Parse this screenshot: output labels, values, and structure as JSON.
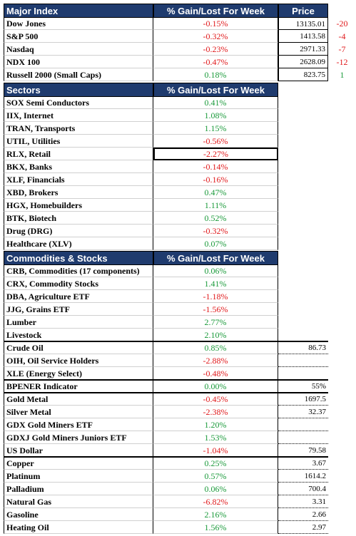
{
  "sections": [
    {
      "title": "Major Index",
      "column": "% Gain/Lost For Week",
      "price_header": "Price",
      "groups": [
        [
          {
            "name": "Dow Jones",
            "pct": "-0.15%",
            "price": "13135.01",
            "change": "-20"
          },
          {
            "name": "S&P 500",
            "pct": "-0.32%",
            "price": "1413.58",
            "change": "-4"
          },
          {
            "name": "Nasdaq",
            "pct": "-0.23%",
            "price": "2971.33",
            "change": "-7"
          },
          {
            "name": "NDX 100",
            "pct": "-0.47%",
            "price": "2628.09",
            "change": "-12"
          },
          {
            "name": "Russell 2000 (Small Caps)",
            "pct": "0.18%",
            "price": "823.75",
            "change": "1"
          }
        ]
      ]
    },
    {
      "title": "Sectors",
      "column": "% Gain/Lost For Week",
      "groups": [
        [
          {
            "name": "SOX Semi Conductors",
            "pct": "0.41%"
          },
          {
            "name": "IIX, Internet",
            "pct": "1.08%"
          },
          {
            "name": "TRAN, Transports",
            "pct": "1.15%"
          },
          {
            "name": "UTIL, Utilities",
            "pct": "-0.56%"
          },
          {
            "name": "RLX, Retail",
            "pct": "-2.27%"
          },
          {
            "name": "BKX, Banks",
            "pct": "-0.14%"
          },
          {
            "name": "XLF, Financials",
            "pct": "-0.16%"
          },
          {
            "name": "XBD, Brokers",
            "pct": "0.47%"
          },
          {
            "name": "HGX, Homebuilders",
            "pct": "1.11%"
          },
          {
            "name": "BTK, Biotech",
            "pct": "0.52%"
          },
          {
            "name": "Drug (DRG)",
            "pct": "-0.32%"
          },
          {
            "name": "Healthcare (XLV)",
            "pct": "0.07%"
          }
        ]
      ]
    },
    {
      "title": "Commodities & Stocks",
      "column": "% Gain/Lost For Week",
      "groups": [
        [
          {
            "name": "CRB, Commodities (17 components)",
            "pct": "0.06%"
          },
          {
            "name": "CRX, Commodity Stocks",
            "pct": "1.41%"
          },
          {
            "name": "DBA, Agriculture ETF",
            "pct": "-1.18%"
          },
          {
            "name": "JJG, Grains ETF",
            "pct": "-1.56%"
          },
          {
            "name": "Lumber",
            "pct": "2.77%"
          },
          {
            "name": "Livestock",
            "pct": "2.10%"
          }
        ],
        [
          {
            "name": "Crude Oil",
            "pct": "0.85%",
            "price": "86.73"
          },
          {
            "name": "OIH, Oil Service Holders",
            "pct": "-2.88%"
          },
          {
            "name": "XLE (Energy Select)",
            "pct": "-0.48%"
          }
        ],
        [
          {
            "name": "BPENER Indicator",
            "pct": "0.00%",
            "price": "55%"
          }
        ],
        [
          {
            "name": "Gold Metal",
            "pct": "-0.45%",
            "price": "1697.5"
          },
          {
            "name": "Silver Metal",
            "pct": "-2.38%",
            "price": "32.37"
          },
          {
            "name": "GDX Gold Miners ETF",
            "pct": "1.20%"
          },
          {
            "name": "GDXJ Gold Miners Juniors ETF",
            "pct": "1.53%"
          },
          {
            "name": "US Dollar",
            "pct": "-1.04%",
            "price": "79.58"
          }
        ],
        [
          {
            "name": "Copper",
            "pct": "0.25%",
            "price": "3.67"
          },
          {
            "name": "Platinum",
            "pct": "0.57%",
            "price": "1614.2"
          },
          {
            "name": "Palladium",
            "pct": "0.06%",
            "price": "700.4"
          },
          {
            "name": "Natural Gas",
            "pct": "-6.82%",
            "price": "3.31"
          },
          {
            "name": "Gasoline",
            "pct": "2.16%",
            "price": "2.66"
          },
          {
            "name": "Heating Oil",
            "pct": "1.56%",
            "price": "2.97"
          }
        ]
      ]
    }
  ]
}
